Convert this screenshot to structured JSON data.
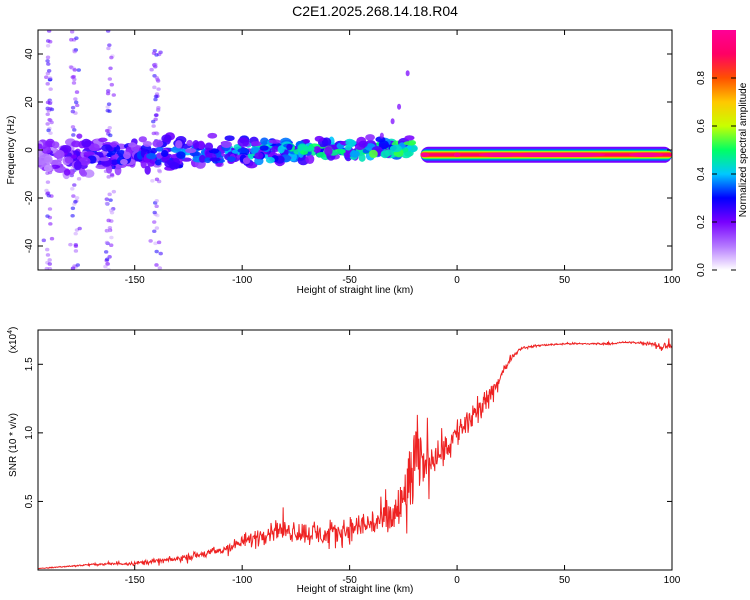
{
  "title": "C2E1.2025.268.14.18.R04",
  "chart_data": [
    {
      "type": "heatmap",
      "xlabel": "Height of straight line (km)",
      "ylabel": "Frequency (Hz)",
      "xlim": [
        -195,
        100
      ],
      "ylim": [
        -50,
        50
      ],
      "xticks": [
        -150,
        -100,
        -50,
        0,
        50,
        100
      ],
      "yticks": [
        -40,
        -20,
        0,
        20,
        40
      ],
      "colorbar": {
        "label": "Normalized spectral amplitude",
        "range": [
          0,
          1
        ],
        "ticks": [
          0.0,
          0.2,
          0.4,
          0.6,
          0.8
        ],
        "colors": [
          "#ffffff",
          "#b478ff",
          "#7800ff",
          "#0000ff",
          "#00c8ff",
          "#00ff64",
          "#c8ff00",
          "#ffc800",
          "#ff5000",
          "#ff0064",
          "#ff0096"
        ]
      },
      "features": [
        {
          "name": "main-band",
          "x_range": [
            -195,
            -20
          ],
          "freq_center": -3,
          "freq_width": 10,
          "peak_amplitude": 0.55
        },
        {
          "name": "stable-line",
          "x_range": [
            -17,
            100
          ],
          "freq": -2,
          "peak_amplitude": 0.95
        },
        {
          "name": "faint-vertical-streaks",
          "x_values": [
            -190,
            -178,
            -162,
            -140
          ],
          "amplitude": 0.1
        }
      ]
    },
    {
      "type": "line",
      "xlabel": "Height of straight line (km)",
      "ylabel": "SNR (10 * v/v)",
      "y_scale_label": "(x10",
      "y_scale_exponent": "4",
      "xlim": [
        -195,
        100
      ],
      "ylim": [
        0,
        1.75
      ],
      "xticks": [
        -150,
        -100,
        -50,
        0,
        50,
        100
      ],
      "yticks": [
        0.5,
        1.0,
        1.5
      ],
      "series": [
        {
          "name": "SNR",
          "color": "#ee2222",
          "x": [
            -195,
            -170,
            -150,
            -130,
            -110,
            -100,
            -85,
            -75,
            -60,
            -50,
            -40,
            -30,
            -25,
            -22,
            -20,
            -15,
            -10,
            -5,
            0,
            5,
            10,
            15,
            20,
            25,
            30,
            40,
            50,
            60,
            70,
            80,
            90,
            95,
            98,
            100
          ],
          "y": [
            0.01,
            0.04,
            0.05,
            0.08,
            0.14,
            0.2,
            0.3,
            0.28,
            0.25,
            0.3,
            0.34,
            0.38,
            0.5,
            0.65,
            0.75,
            0.8,
            0.85,
            0.9,
            1.0,
            1.08,
            1.15,
            1.25,
            1.4,
            1.55,
            1.62,
            1.64,
            1.65,
            1.65,
            1.65,
            1.66,
            1.65,
            1.62,
            1.65,
            1.64
          ],
          "noise": [
            0.003,
            0.01,
            0.02,
            0.03,
            0.05,
            0.07,
            0.1,
            0.12,
            0.12,
            0.14,
            0.16,
            0.22,
            0.35,
            0.5,
            0.4,
            0.25,
            0.2,
            0.18,
            0.16,
            0.18,
            0.14,
            0.1,
            0.08,
            0.03,
            0.015,
            0.01,
            0.01,
            0.01,
            0.01,
            0.01,
            0.015,
            0.05,
            0.1,
            0.03
          ]
        }
      ]
    }
  ]
}
